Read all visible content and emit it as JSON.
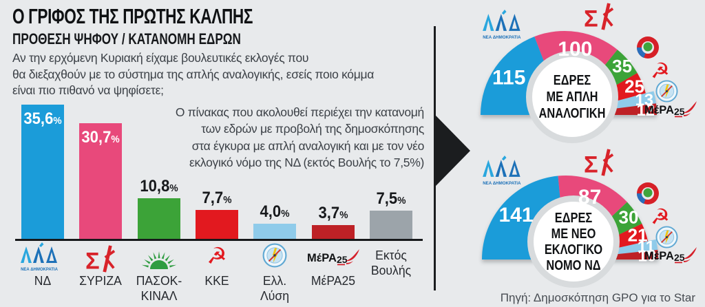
{
  "header": {
    "title": "Ο ΓΡΙΦΟΣ ΤΗΣ ΠΡΩΤΗΣ ΚΑΛΠΗΣ",
    "subtitle": "ΠΡΟΘΕΣΗ ΨΗΦΟΥ / ΚΑΤΑΝΟΜΗ ΕΔΡΩΝ",
    "question": "Αν την ερχόμενη Κυριακή είχαμε βουλευτικές εκλογές που\nθα διεξαχθούν με το σύστημα της απλής αναλογικής, εσείς ποιο κόμμα\nείναι πιο πιθανό να ψηφίσετε;"
  },
  "note": "Ο πίνακας που ακολουθεί περιέχει την κατανομή\nτων εδρών με προβολή της δημοσκόπησης\nστα έγκυρα με απλή αναλογική και με τον νέο\nεκλογικό νόμο της ΝΔ (εκτός Βουλής το 7,5%)",
  "source": "Πηγή: Δημοσκόπηση GPO για το Star",
  "colors": {
    "background": "#E8EAEC",
    "divider": "#1B1D1F",
    "nd_blue": "#1B9CD9",
    "syriza_pink": "#E8497B",
    "pasok_green": "#3CA338",
    "kke_red": "#E2191F",
    "ellysi_lightblue": "#8FCBEA",
    "mera_darkred": "#BE2126",
    "ektos_gray": "#9CA4AA"
  },
  "parties": [
    {
      "id": "nd",
      "name": "ΝΔ",
      "label_lines": [
        "ΝΔ"
      ],
      "color": "#1B9CD9",
      "logo": "nd"
    },
    {
      "id": "syriza",
      "name": "ΣΥΡΙΖΑ",
      "label_lines": [
        "ΣΥΡΙΖΑ"
      ],
      "color": "#E8497B",
      "logo": "syriza"
    },
    {
      "id": "pasok",
      "name": "ΠΑΣΟΚ-ΚΙΝΑΛ",
      "label_lines": [
        "ΠΑΣΟΚ-",
        "ΚΙΝΑΛ"
      ],
      "color": "#3CA338",
      "logo": "pasok-sun"
    },
    {
      "id": "kke",
      "name": "ΚΚΕ",
      "label_lines": [
        "ΚΚΕ"
      ],
      "color": "#E2191F",
      "logo": "kke"
    },
    {
      "id": "ellysi",
      "name": "Ελλ. Λύση",
      "label_lines": [
        "Ελλ.",
        "Λύση"
      ],
      "color": "#8FCBEA",
      "logo": "compass"
    },
    {
      "id": "mera25",
      "name": "ΜέΡΑ25",
      "label_lines": [
        "ΜέΡΑ25"
      ],
      "color": "#BE2126",
      "logo": "mera25"
    },
    {
      "id": "ektos",
      "name": "Εκτός Βουλής",
      "label_lines": [
        "Εκτός",
        "Βουλής"
      ],
      "color": "#9CA4AA",
      "logo": null
    }
  ],
  "chart_data": [
    {
      "type": "bar",
      "title": "ΠΡΟΘΕΣΗ ΨΗΦΟΥ",
      "categories": [
        "ΝΔ",
        "ΣΥΡΙΖΑ",
        "ΠΑΣΟΚ-ΚΙΝΑΛ",
        "ΚΚΕ",
        "Ελλ. Λύση",
        "ΜέΡΑ25",
        "Εκτός Βουλής"
      ],
      "values": [
        35.6,
        30.7,
        10.8,
        7.7,
        4.0,
        3.7,
        7.5
      ],
      "value_labels": [
        "35,6%",
        "30,7%",
        "10,8%",
        "7,7%",
        "4,0%",
        "3,7%",
        "7,5%"
      ],
      "label_inside": [
        true,
        true,
        false,
        false,
        false,
        false,
        false
      ],
      "unit": "%",
      "xlabel": "",
      "ylabel": "",
      "ylim": [
        0,
        38
      ],
      "grid": false,
      "legend": "none"
    },
    {
      "type": "pie",
      "variant": "half-donut",
      "title": "ΕΔΡΕΣ ΜΕ ΑΠΛΗ ΑΝΑΛΟΓΙΚΗ",
      "center_label": "ΕΔΡΕΣ\nΜΕ ΑΠΛΗ\nΑΝΑΛΟΓΙΚΗ",
      "categories": [
        "ΝΔ",
        "ΣΥΡΙΖΑ",
        "ΠΑΣΟΚ-ΚΙΝΑΛ",
        "ΚΚΕ",
        "Ελλ. Λύση",
        "ΜέΡΑ25"
      ],
      "values": [
        115,
        100,
        35,
        25,
        13,
        12
      ],
      "total": 300
    },
    {
      "type": "pie",
      "variant": "half-donut",
      "title": "ΕΔΡΕΣ ΜΕ ΝΕΟ ΕΚΛΟΓΙΚΟ ΝΟΜΟ ΝΔ",
      "center_label": "ΕΔΡΕΣ\nΜΕ ΝΕΟ\nΕΚΛΟΓΙΚΟ\nΝΟΜΟ ΝΔ",
      "categories": [
        "ΝΔ",
        "ΣΥΡΙΖΑ",
        "ΠΑΣΟΚ-ΚΙΝΑΛ",
        "ΚΚΕ",
        "Ελλ. Λύση",
        "ΜέΡΑ25"
      ],
      "values": [
        141,
        87,
        30,
        21,
        11,
        10
      ],
      "total": 300
    }
  ]
}
